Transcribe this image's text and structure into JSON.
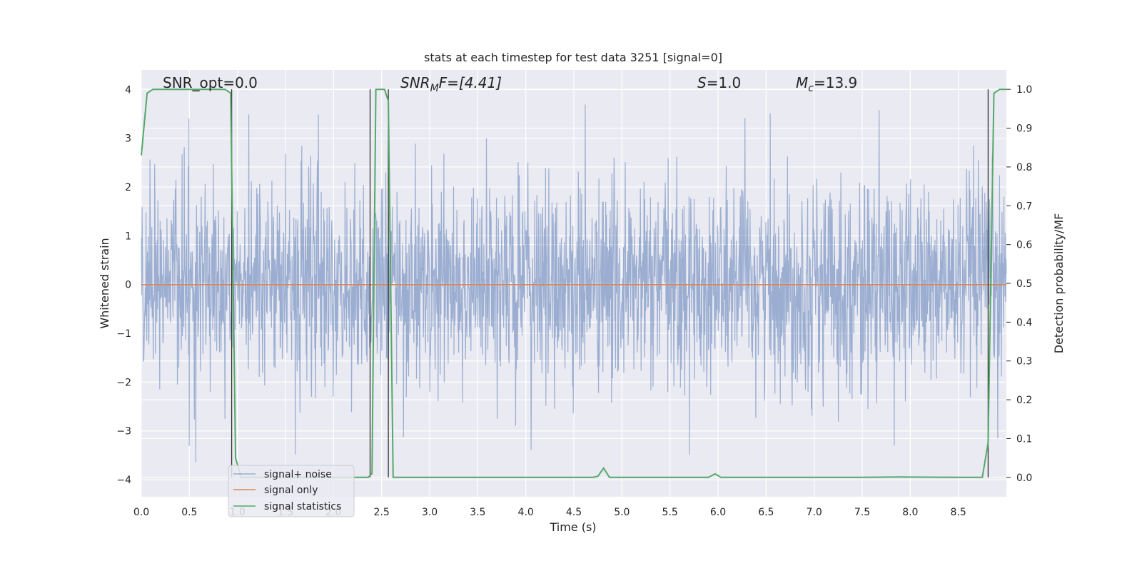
{
  "chart_data": {
    "type": "line",
    "title": "stats at each timestep for test data 3251 [signal=0]",
    "xlabel": "Time (s)",
    "ylabel_left": "Whitened strain",
    "ylabel_right": "Detection probability/MF",
    "xlim": [
      0.0,
      9.0
    ],
    "ylim_left": [
      -4.35,
      4.4
    ],
    "ylim_right": [
      -0.05,
      1.05
    ],
    "xticks": [
      "0.0",
      "0.5",
      "1.0",
      "1.5",
      "2.0",
      "2.5",
      "3.0",
      "3.5",
      "4.0",
      "4.5",
      "5.0",
      "5.5",
      "6.0",
      "6.5",
      "7.0",
      "7.5",
      "8.0",
      "8.5"
    ],
    "yticks_left": [
      "4",
      "3",
      "2",
      "1",
      "0",
      "−1",
      "−2",
      "−3",
      "−4"
    ],
    "yticks_right": [
      "1.0",
      "0.9",
      "0.8",
      "0.7",
      "0.6",
      "0.5",
      "0.4",
      "0.3",
      "0.2",
      "0.1",
      "0.0"
    ],
    "grid": true,
    "legend_placement": "lower-left",
    "annotations": {
      "snr_opt": "SNR_opt=0.0",
      "snr_mf_main": "SNR",
      "snr_mf_sub": "M",
      "snr_mf_rest": "F=[4.41]",
      "s_main": "S",
      "s_rest": "=1.0",
      "mc_main": "M",
      "mc_sub": "c",
      "mc_rest": "=13.9"
    },
    "series": [
      {
        "name": "signal+ noise",
        "color": "#4c72b0",
        "axis": "left",
        "description_values": "whitened noisy strain, roughly within -3.5..3.5",
        "x_range": [
          0.0,
          9.0
        ],
        "seed": 3251
      },
      {
        "name": "signal only",
        "color": "#dd8452",
        "axis": "left",
        "x": [
          0.0,
          9.0
        ],
        "y": [
          0.0,
          0.0
        ]
      },
      {
        "name": "signal statistics",
        "color": "#55a868",
        "axis": "right",
        "x": [
          0.0,
          0.06,
          0.12,
          0.2,
          0.5,
          0.8,
          0.87,
          0.93,
          0.98,
          1.04,
          1.5,
          2.0,
          2.3,
          2.36,
          2.4,
          2.44,
          2.5,
          2.53,
          2.57,
          2.62,
          3.0,
          4.0,
          4.7,
          4.75,
          4.81,
          4.87,
          5.0,
          5.5,
          5.9,
          5.97,
          6.03,
          6.1,
          7.0,
          7.5,
          7.9,
          8.5,
          8.75,
          8.81,
          8.87,
          8.93,
          9.0
        ],
        "y": [
          0.83,
          0.99,
          1.0,
          1.0,
          1.0,
          1.0,
          1.0,
          0.99,
          0.05,
          0.0,
          0.0,
          0.0,
          0.0,
          0.0,
          0.01,
          1.0,
          1.0,
          1.0,
          0.97,
          0.0,
          0.0,
          0.0,
          0.0,
          0.003,
          0.024,
          0.0,
          0.0,
          0.0,
          0.0,
          0.009,
          0.0,
          0.0,
          0.0,
          0.0,
          0.001,
          0.0,
          0.0,
          0.09,
          0.99,
          1.0,
          1.0
        ]
      }
    ],
    "vlines": [
      0.94,
      2.38,
      2.57,
      8.81
    ],
    "vline_color": "#333333",
    "style": {
      "background": "#eaeaf2",
      "grid_color": "#ffffff"
    }
  }
}
